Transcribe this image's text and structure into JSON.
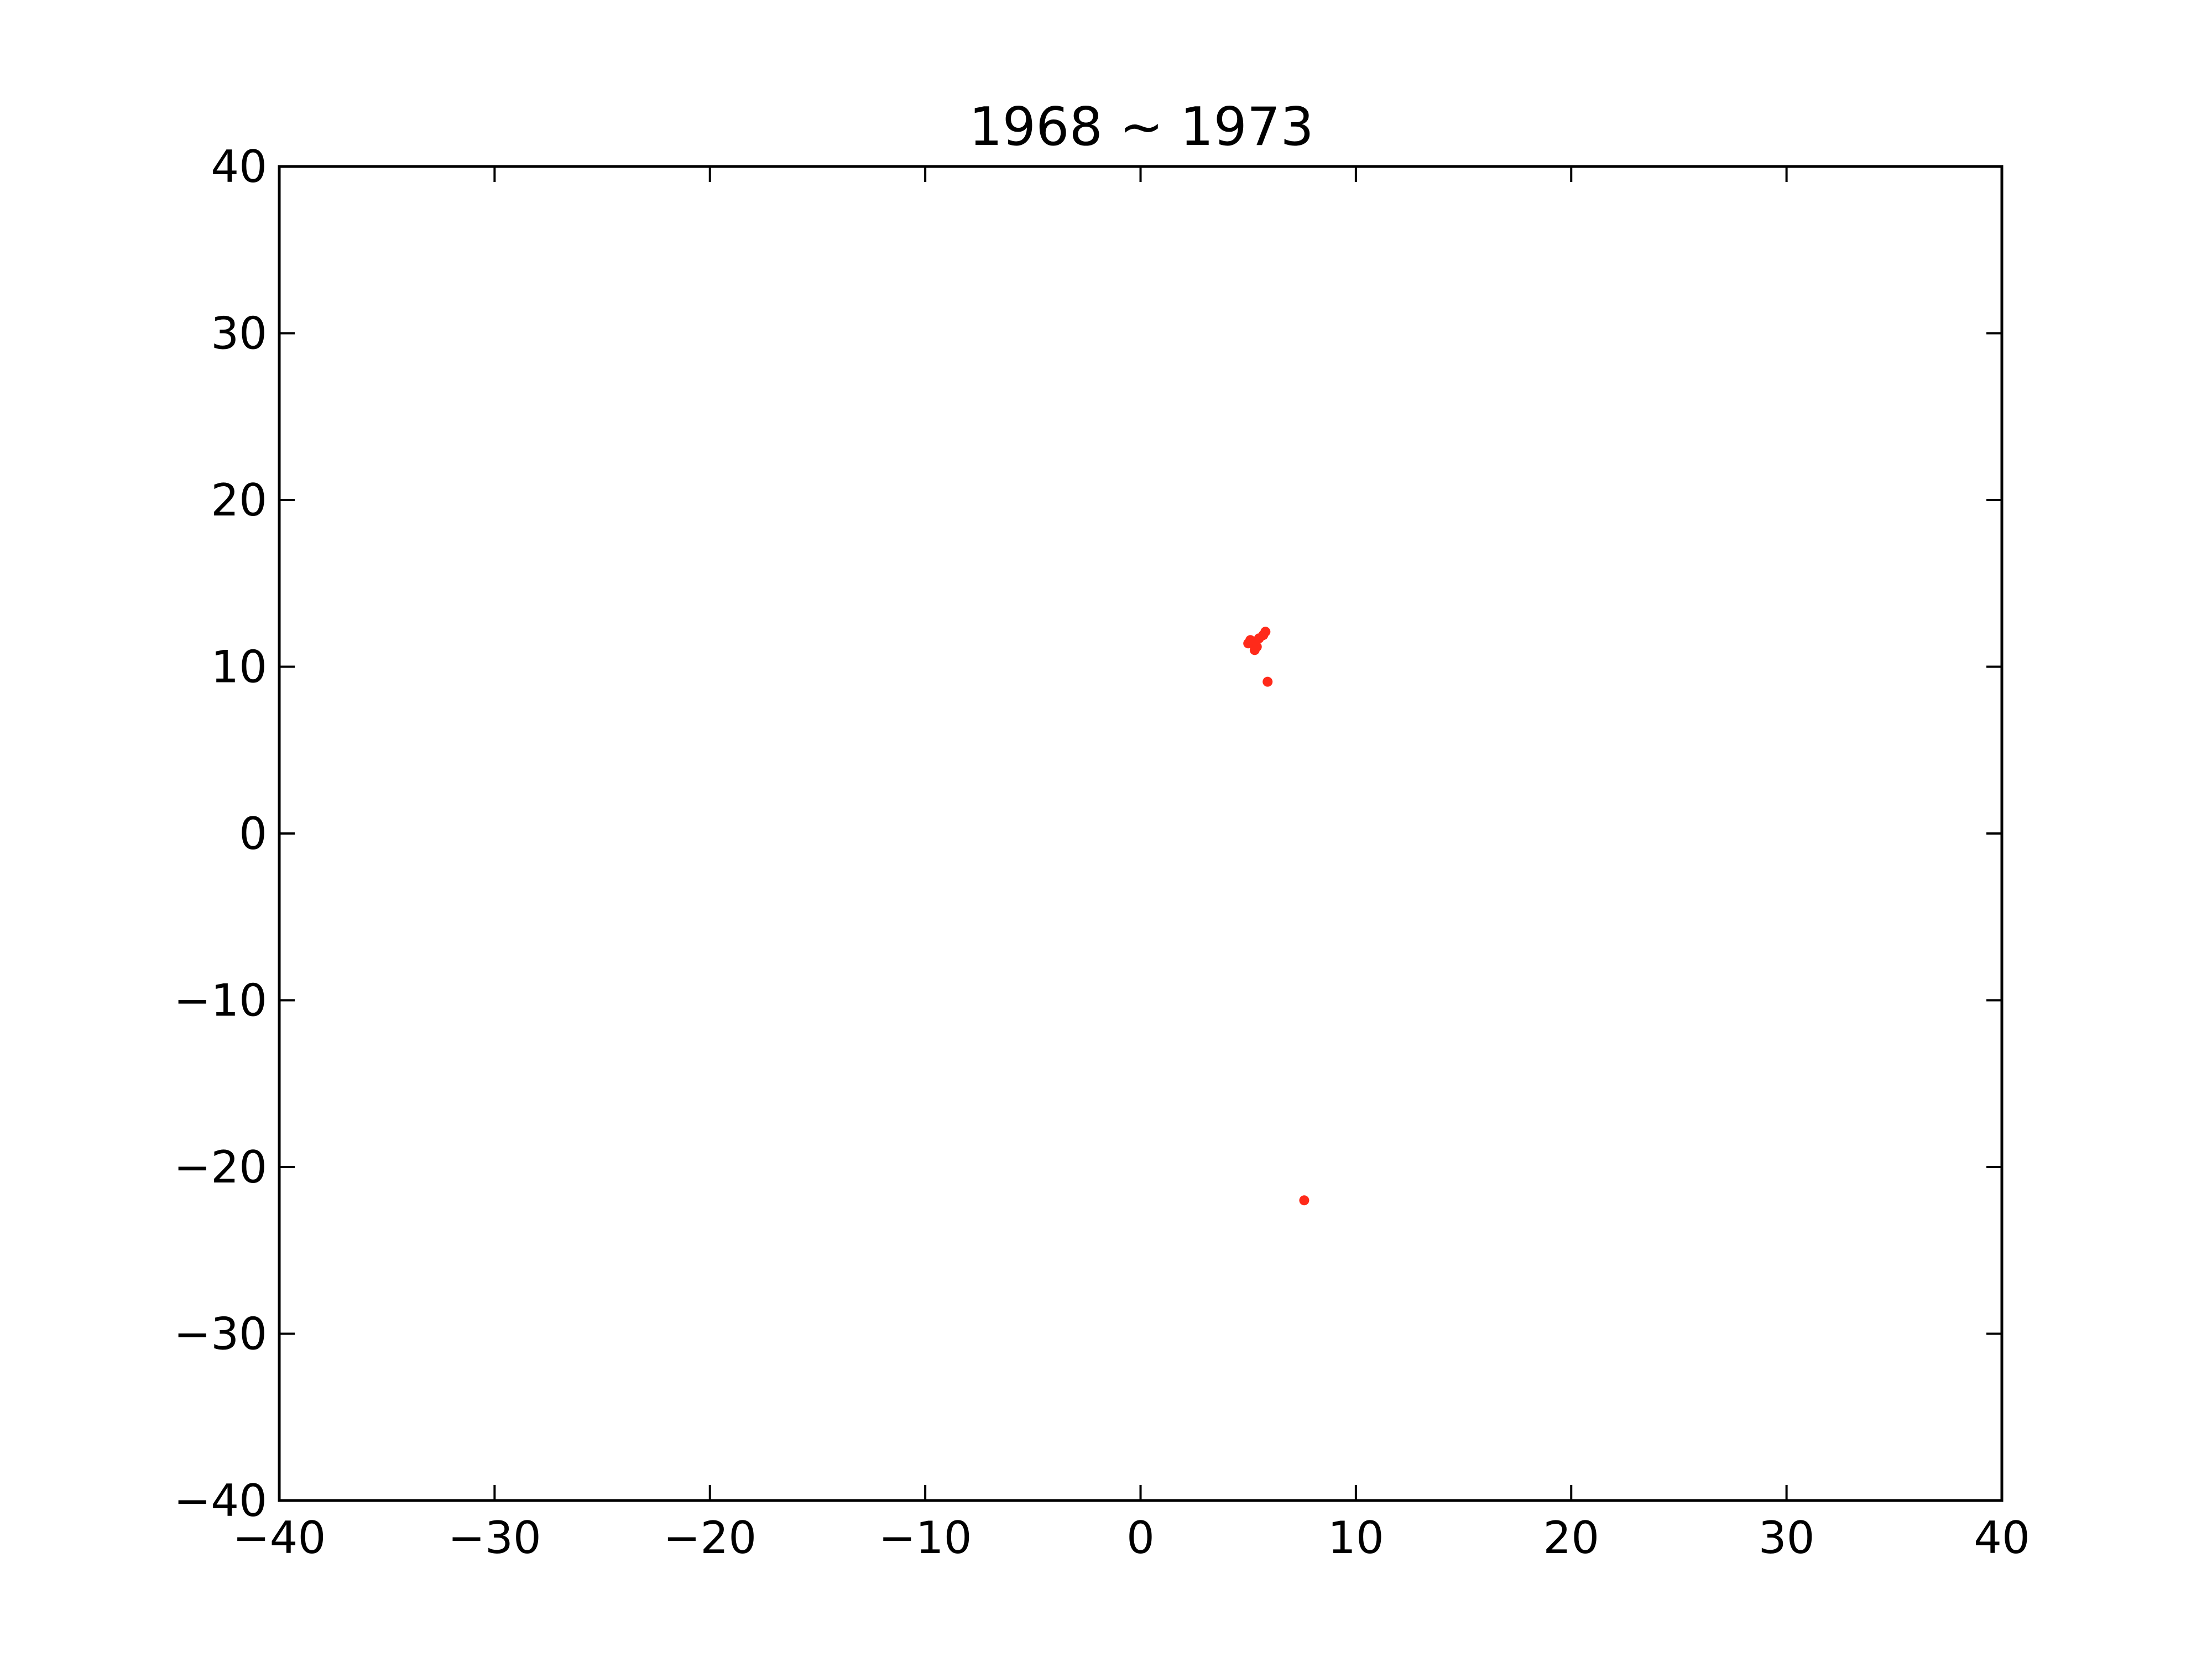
{
  "chart_data": {
    "type": "scatter",
    "title": "1968 ~ 1973",
    "xlabel": "",
    "ylabel": "",
    "xlim": [
      -40,
      40
    ],
    "ylim": [
      -40,
      40
    ],
    "x_ticks": [
      -40,
      -30,
      -20,
      -10,
      0,
      10,
      20,
      30,
      40
    ],
    "y_ticks": [
      -40,
      -30,
      -20,
      -10,
      0,
      10,
      20,
      30,
      40
    ],
    "x_tick_labels": [
      "−40",
      "−30",
      "−20",
      "−10",
      "0",
      "10",
      "20",
      "30",
      "40"
    ],
    "y_tick_labels": [
      "−40",
      "−30",
      "−20",
      "−10",
      "0",
      "10",
      "20",
      "30",
      "40"
    ],
    "grid": false,
    "series": [
      {
        "color": "#ff2a1a",
        "points": [
          {
            "x": 5.2,
            "y": 11.5
          },
          {
            "x": 5.5,
            "y": 11.7
          },
          {
            "x": 5.0,
            "y": 11.4
          },
          {
            "x": 5.4,
            "y": 11.2
          },
          {
            "x": 5.7,
            "y": 11.9
          },
          {
            "x": 5.3,
            "y": 11.0
          },
          {
            "x": 5.8,
            "y": 12.1
          },
          {
            "x": 5.1,
            "y": 11.6
          },
          {
            "x": 5.9,
            "y": 9.1
          },
          {
            "x": 7.6,
            "y": -22.0
          }
        ]
      }
    ]
  }
}
